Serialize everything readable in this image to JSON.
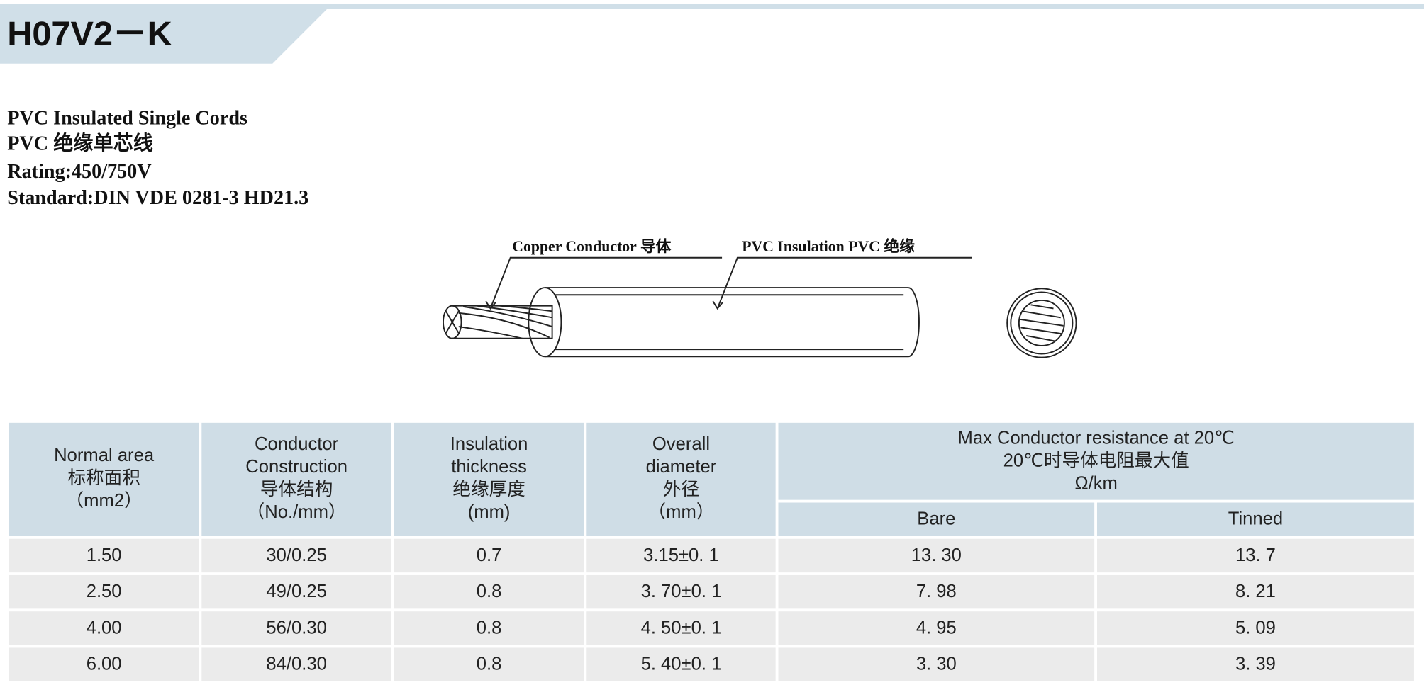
{
  "header": {
    "title": "H07V2－K"
  },
  "description": [
    "PVC Insulated Single Cords",
    "PVC 绝缘单芯线",
    "Rating:450/750V",
    "Standard:DIN VDE 0281-3 HD21.3"
  ],
  "diagram": {
    "labels": [
      "Copper Conductor 导体",
      "PVC Insulation PVC 绝缘"
    ]
  },
  "table": {
    "columns": [
      [
        "Normal area",
        "标称面积",
        "（mm2）"
      ],
      [
        "Conductor",
        "Construction",
        "导体结构",
        "（No./mm）"
      ],
      [
        "Insulation",
        "thickness",
        "绝缘厚度",
        "(mm)"
      ],
      [
        "Overall",
        "diameter",
        "外径",
        "（mm）"
      ]
    ],
    "group_header": [
      "Max Conductor resistance at 20℃",
      "20℃时导体电阻最大值",
      "Ω/km"
    ],
    "subcolumns": [
      "Bare",
      "Tinned"
    ],
    "rows": [
      [
        "1.50",
        "30/0.25",
        "0.7",
        "3.15±0. 1",
        "13. 30",
        "13. 7"
      ],
      [
        "2.50",
        "49/0.25",
        "0.8",
        "3. 70±0. 1",
        "7. 98",
        "8. 21"
      ],
      [
        "4.00",
        "56/0.30",
        "0.8",
        "4. 50±0. 1",
        "4. 95",
        "5. 09"
      ],
      [
        "6.00",
        "84/0.30",
        "0.8",
        "5. 40±0. 1",
        "3. 30",
        "3. 39"
      ]
    ]
  }
}
